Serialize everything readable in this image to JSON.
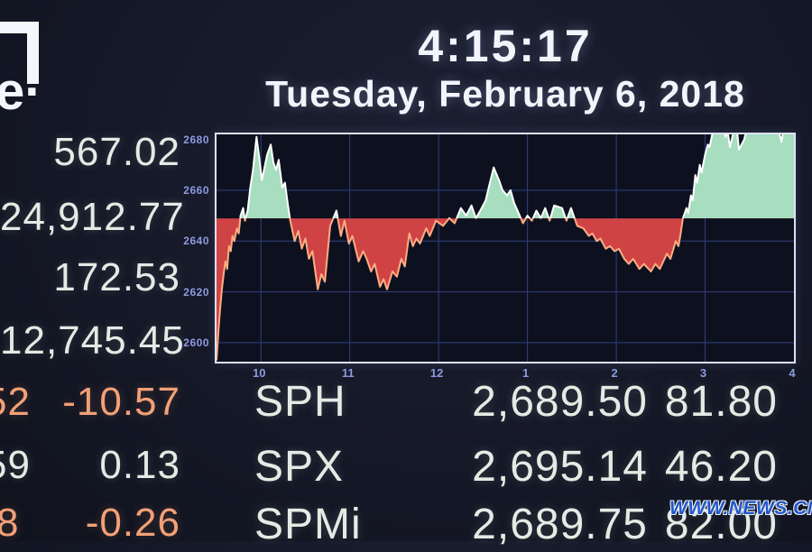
{
  "logo": {
    "fragment": "e·"
  },
  "clock": {
    "time": "4:15:17",
    "date": "Tuesday, February 6, 2018"
  },
  "left_panel": {
    "rows": [
      {
        "value": "567.02",
        "tone": "white"
      },
      {
        "value": "24,912.77",
        "tone": "white"
      },
      {
        "value": "172.53",
        "tone": "white"
      },
      {
        "value": "12,745.45",
        "tone": "white"
      },
      {
        "value": "-10.57",
        "fragment": "52",
        "tone": "orange"
      },
      {
        "value": "0.13",
        "fragment": "59",
        "tone": "white"
      },
      {
        "value": "-0.26",
        "fragment": "8",
        "tone": "orange"
      }
    ]
  },
  "ticker_table": {
    "rows": [
      {
        "symbol": "SPH",
        "price": "2,689.50",
        "change": "81.80"
      },
      {
        "symbol": "SPX",
        "price": "2,695.14",
        "change": "46.20"
      },
      {
        "symbol": "SPMi",
        "price": "2,689.75",
        "change": "82.00"
      }
    ]
  },
  "watermark": {
    "text": "WWW.NEWS.CN"
  },
  "colors": {
    "background": "#151827",
    "text_white": "#e2ebe4",
    "text_orange": "#f2a077",
    "watermark_blue": "#2157c8"
  },
  "chart_data": {
    "type": "area",
    "description": "intraday index line vs prior close baseline, green above / red below",
    "x_axis": {
      "min": 9.5,
      "max": 16,
      "ticks": [
        {
          "t": 10,
          "label": "10"
        },
        {
          "t": 11,
          "label": "11"
        },
        {
          "t": 12,
          "label": "12"
        },
        {
          "t": 13,
          "label": "1"
        },
        {
          "t": 14,
          "label": "2"
        },
        {
          "t": 15,
          "label": "3"
        },
        {
          "t": 16,
          "label": "4"
        }
      ]
    },
    "y_axis": {
      "top": 2682,
      "bottom": 2592.5,
      "ticks": [
        2680,
        2660,
        2640,
        2620,
        2600
      ]
    },
    "baseline": 2648.94,
    "grid": true,
    "series": [
      {
        "name": "index",
        "points": [
          [
            9.5,
            2593
          ],
          [
            9.52,
            2604
          ],
          [
            9.54,
            2613
          ],
          [
            9.56,
            2621
          ],
          [
            9.58,
            2627
          ],
          [
            9.6,
            2632
          ],
          [
            9.62,
            2629
          ],
          [
            9.64,
            2638
          ],
          [
            9.66,
            2636
          ],
          [
            9.68,
            2642
          ],
          [
            9.7,
            2640
          ],
          [
            9.73,
            2645
          ],
          [
            9.75,
            2643
          ],
          [
            9.77,
            2650
          ],
          [
            9.8,
            2653
          ],
          [
            9.82,
            2648
          ],
          [
            9.85,
            2652
          ],
          [
            9.88,
            2661
          ],
          [
            9.91,
            2668
          ],
          [
            9.95,
            2681
          ],
          [
            9.98,
            2673
          ],
          [
            10.01,
            2664
          ],
          [
            10.04,
            2669
          ],
          [
            10.07,
            2674
          ],
          [
            10.11,
            2678
          ],
          [
            10.14,
            2671
          ],
          [
            10.17,
            2668
          ],
          [
            10.2,
            2672
          ],
          [
            10.24,
            2661
          ],
          [
            10.27,
            2663
          ],
          [
            10.3,
            2655
          ],
          [
            10.33,
            2648
          ],
          [
            10.38,
            2640
          ],
          [
            10.42,
            2644
          ],
          [
            10.46,
            2637
          ],
          [
            10.5,
            2641
          ],
          [
            10.54,
            2633
          ],
          [
            10.58,
            2636
          ],
          [
            10.64,
            2621
          ],
          [
            10.68,
            2627
          ],
          [
            10.72,
            2624
          ],
          [
            10.78,
            2646
          ],
          [
            10.85,
            2652
          ],
          [
            10.9,
            2642
          ],
          [
            10.94,
            2648
          ],
          [
            10.99,
            2639
          ],
          [
            11.03,
            2642
          ],
          [
            11.1,
            2632
          ],
          [
            11.15,
            2636
          ],
          [
            11.19,
            2633
          ],
          [
            11.24,
            2628
          ],
          [
            11.28,
            2631
          ],
          [
            11.34,
            2622
          ],
          [
            11.38,
            2625
          ],
          [
            11.42,
            2621
          ],
          [
            11.48,
            2628
          ],
          [
            11.53,
            2626
          ],
          [
            11.58,
            2633
          ],
          [
            11.62,
            2630
          ],
          [
            11.67,
            2643
          ],
          [
            11.71,
            2638
          ],
          [
            11.75,
            2641
          ],
          [
            11.79,
            2639
          ],
          [
            11.86,
            2645
          ],
          [
            11.9,
            2642
          ],
          [
            11.97,
            2648
          ],
          [
            12.05,
            2646
          ],
          [
            12.12,
            2649
          ],
          [
            12.18,
            2647
          ],
          [
            12.25,
            2653
          ],
          [
            12.31,
            2650
          ],
          [
            12.37,
            2654
          ],
          [
            12.42,
            2649
          ],
          [
            12.47,
            2652
          ],
          [
            12.53,
            2656
          ],
          [
            12.57,
            2662
          ],
          [
            12.62,
            2669
          ],
          [
            12.68,
            2664
          ],
          [
            12.72,
            2660
          ],
          [
            12.77,
            2658
          ],
          [
            12.81,
            2660
          ],
          [
            12.85,
            2655
          ],
          [
            12.9,
            2651
          ],
          [
            12.95,
            2647
          ],
          [
            13.0,
            2650
          ],
          [
            13.05,
            2648
          ],
          [
            13.1,
            2652
          ],
          [
            13.15,
            2649
          ],
          [
            13.2,
            2653
          ],
          [
            13.25,
            2648
          ],
          [
            13.3,
            2654
          ],
          [
            13.39,
            2653
          ],
          [
            13.44,
            2648
          ],
          [
            13.49,
            2653
          ],
          [
            13.56,
            2646
          ],
          [
            13.63,
            2645
          ],
          [
            13.69,
            2642
          ],
          [
            13.73,
            2643
          ],
          [
            13.78,
            2640
          ],
          [
            13.82,
            2641
          ],
          [
            13.88,
            2637
          ],
          [
            13.93,
            2638
          ],
          [
            13.98,
            2636
          ],
          [
            14.03,
            2637
          ],
          [
            14.09,
            2633
          ],
          [
            14.14,
            2631
          ],
          [
            14.19,
            2633
          ],
          [
            14.26,
            2629
          ],
          [
            14.31,
            2631
          ],
          [
            14.39,
            2628
          ],
          [
            14.44,
            2631
          ],
          [
            14.49,
            2629
          ],
          [
            14.57,
            2635
          ],
          [
            14.61,
            2633
          ],
          [
            14.67,
            2640
          ],
          [
            14.7,
            2638
          ],
          [
            14.72,
            2642
          ],
          [
            14.75,
            2649
          ],
          [
            14.79,
            2653
          ],
          [
            14.81,
            2651
          ],
          [
            14.84,
            2658
          ],
          [
            14.86,
            2656
          ],
          [
            14.89,
            2666
          ],
          [
            14.91,
            2663
          ],
          [
            14.94,
            2670
          ],
          [
            14.96,
            2667
          ],
          [
            15.0,
            2674
          ],
          [
            15.03,
            2678
          ],
          [
            15.05,
            2677
          ],
          [
            15.08,
            2682
          ],
          [
            15.12,
            2686
          ],
          [
            15.16,
            2689
          ],
          [
            15.2,
            2684
          ],
          [
            15.23,
            2681
          ],
          [
            15.25,
            2684
          ],
          [
            15.28,
            2677
          ],
          [
            15.32,
            2683
          ],
          [
            15.35,
            2687
          ],
          [
            15.38,
            2676
          ],
          [
            15.44,
            2680
          ],
          [
            15.48,
            2686
          ],
          [
            15.53,
            2690
          ],
          [
            15.58,
            2688
          ],
          [
            15.63,
            2692
          ],
          [
            15.68,
            2689
          ],
          [
            15.73,
            2691
          ],
          [
            15.78,
            2688
          ],
          [
            15.82,
            2685
          ],
          [
            15.86,
            2679
          ],
          [
            15.9,
            2688
          ],
          [
            15.95,
            2691
          ],
          [
            16.0,
            2686
          ]
        ]
      }
    ],
    "colors": {
      "above_fill": "#a6debf",
      "below_fill": "#cf4345",
      "line_above": "#ffffff",
      "line_below": "#ffad82",
      "grid": "#33407e",
      "border": "#dde1f6",
      "tick_text": "#8e9ae0"
    }
  }
}
